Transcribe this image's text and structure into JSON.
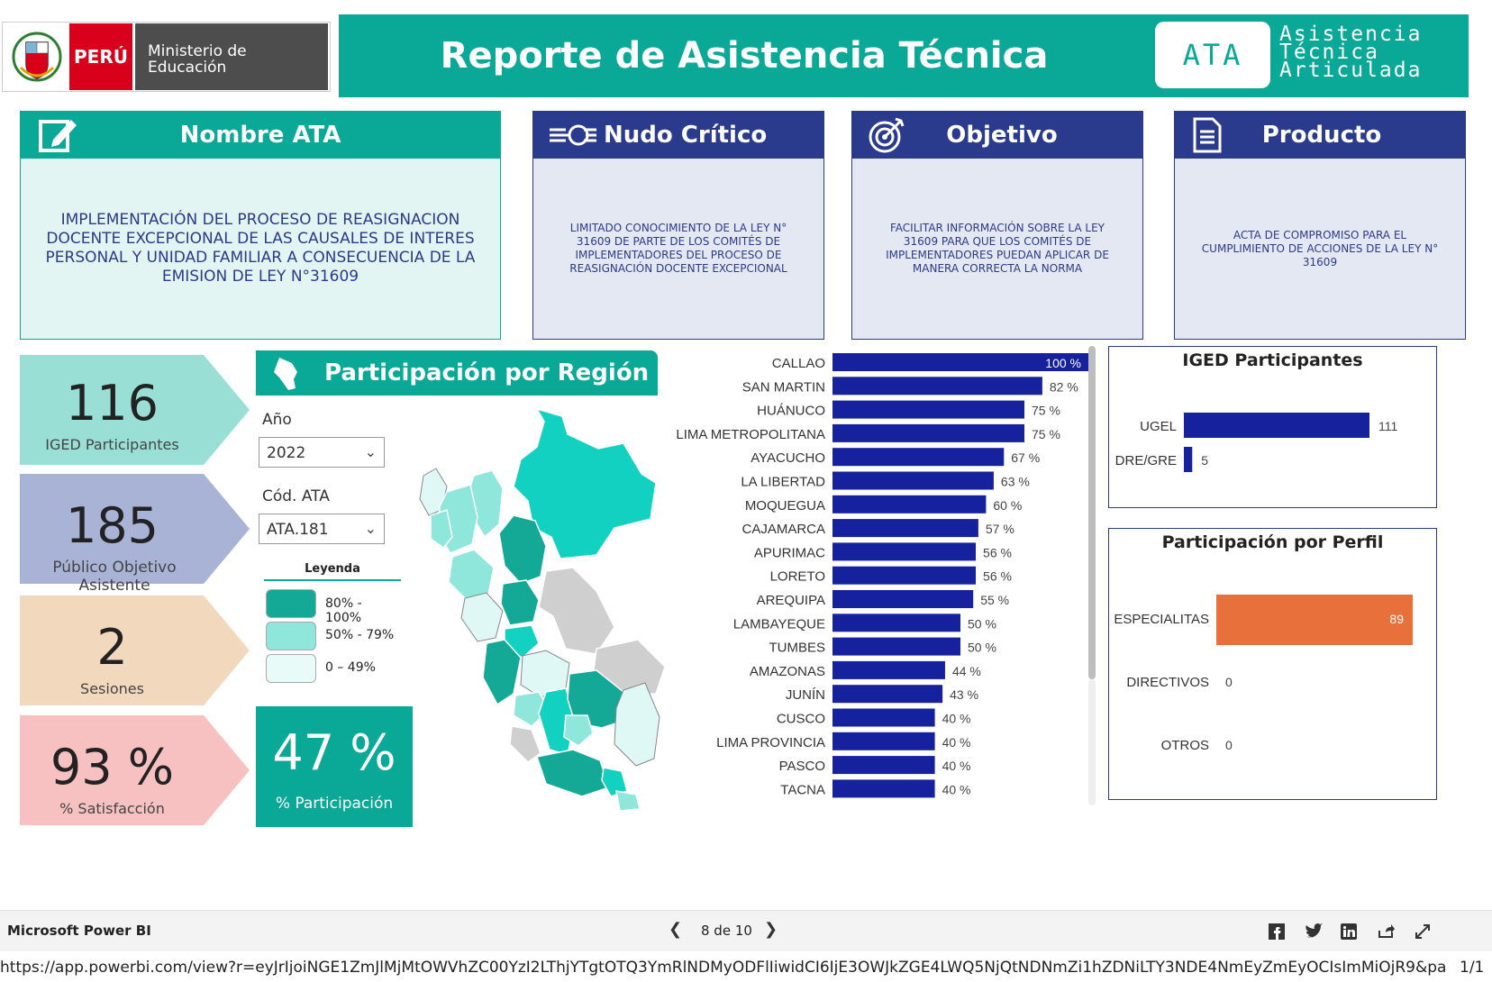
{
  "header": {
    "peru_label": "PERÚ",
    "ministry_label": "Ministerio de Educación",
    "title": "Reporte de Asistencia Técnica",
    "ata_badge": "ATA",
    "ata_words": [
      "Asistencia",
      "Técnica",
      "Articulada"
    ]
  },
  "cards": {
    "nombre": {
      "title": "Nombre ATA",
      "text": "IMPLEMENTACIÓN DEL PROCESO DE REASIGNACION DOCENTE EXCEPCIONAL DE LAS CAUSALES DE INTERES PERSONAL Y UNIDAD FAMILIAR A CONSECUENCIA DE LA EMISION DE LEY N°31609"
    },
    "nudo": {
      "title": "Nudo Crítico",
      "text": "LIMITADO CONOCIMIENTO DE LA LEY N° 31609 DE PARTE DE LOS COMITÉS DE IMPLEMENTADORES DEL PROCESO DE REASIGNACIÓN DOCENTE EXCEPCIONAL"
    },
    "objetivo": {
      "title": "Objetivo",
      "text": "FACILITAR INFORMACIÓN SOBRE LA LEY 31609 PARA QUE LOS COMITÉS DE IMPLEMENTADORES PUEDAN APLICAR DE MANERA CORRECTA LA NORMA"
    },
    "producto": {
      "title": "Producto",
      "text": "ACTA DE COMPROMISO PARA EL CUMPLIMIENTO DE ACCIONES DE LA LEY N° 31609"
    }
  },
  "kpis": [
    {
      "value": "116",
      "label": "IGED Participantes",
      "color": "#9adfd6"
    },
    {
      "value": "185",
      "label": "Público Objetivo Asistente",
      "color": "#a9b3d6"
    },
    {
      "value": "2",
      "label": "Sesiones",
      "color": "#f2d9bd"
    },
    {
      "value": "93 %",
      "label": "% Satisfacción",
      "color": "#f7c1c1"
    }
  ],
  "participacion": {
    "value": "47 %",
    "label": "% Participación"
  },
  "region_panel": {
    "title": "Participación por Región"
  },
  "filters": {
    "year_label": "Año",
    "year_value": "2022",
    "code_label": "Cód. ATA",
    "code_value": "ATA.181"
  },
  "legend": {
    "title": "Leyenda",
    "items": [
      {
        "label": "80% - 100%",
        "color": "#13a996"
      },
      {
        "label": "50% - 79%",
        "color": "#8fe6da"
      },
      {
        "label": "0 – 49%",
        "color": "#e9fbf9"
      }
    ]
  },
  "colors": {
    "teal": "#0aa896",
    "navy": "#16219e",
    "card_body": "#e4e8f2",
    "orange": "#e8703a"
  },
  "chart_data": [
    {
      "type": "bar",
      "orientation": "horizontal",
      "categories": [
        "CALLAO",
        "SAN MARTIN",
        "HUÁNUCO",
        "LIMA METROPOLITANA",
        "AYACUCHO",
        "LA LIBERTAD",
        "MOQUEGUA",
        "CAJAMARCA",
        "APURIMAC",
        "LORETO",
        "AREQUIPA",
        "LAMBAYEQUE",
        "TUMBES",
        "AMAZONAS",
        "JUNÍN",
        "CUSCO",
        "LIMA PROVINCIA",
        "PASCO",
        "TACNA"
      ],
      "values": [
        100,
        82,
        75,
        75,
        67,
        63,
        60,
        57,
        56,
        56,
        55,
        50,
        50,
        44,
        43,
        40,
        40,
        40,
        40
      ],
      "value_labels": [
        "100 %",
        "82 %",
        "75 %",
        "75 %",
        "67 %",
        "63 %",
        "60 %",
        "57 %",
        "56 %",
        "56 %",
        "55 %",
        "50 %",
        "50 %",
        "44 %",
        "43 %",
        "40 %",
        "40 %",
        "40 %",
        "40 %"
      ],
      "xlim": [
        0,
        100
      ]
    },
    {
      "type": "bar",
      "orientation": "horizontal",
      "title": "IGED Participantes",
      "categories": [
        "UGEL",
        "DRE/GRE"
      ],
      "values": [
        111,
        5
      ],
      "value_labels": [
        "111",
        "5"
      ]
    },
    {
      "type": "bar",
      "orientation": "horizontal",
      "title": "Participación por Perfil",
      "categories": [
        "ESPECIALITAS",
        "DIRECTIVOS",
        "OTROS"
      ],
      "values": [
        89,
        0,
        0
      ],
      "value_labels": [
        "89",
        "0",
        "0"
      ]
    }
  ],
  "footer": {
    "app_name": "Microsoft Power BI",
    "page_indicator": "8 de 10",
    "url": "https://app.powerbi.com/view?r=eyJrIjoiNGE1ZmJlMjMtOWVhZC00YzI2LThjYTgtOTQ3YmRlNDMyODFlIiwidCI6IjE3OWJkZGE4LWQ5NjQtNDNmZi1hZDNiLTY3NDE4NmEyZmEyOCIsImMiOjR9&pageName=Report…",
    "url_page": "1/1"
  }
}
